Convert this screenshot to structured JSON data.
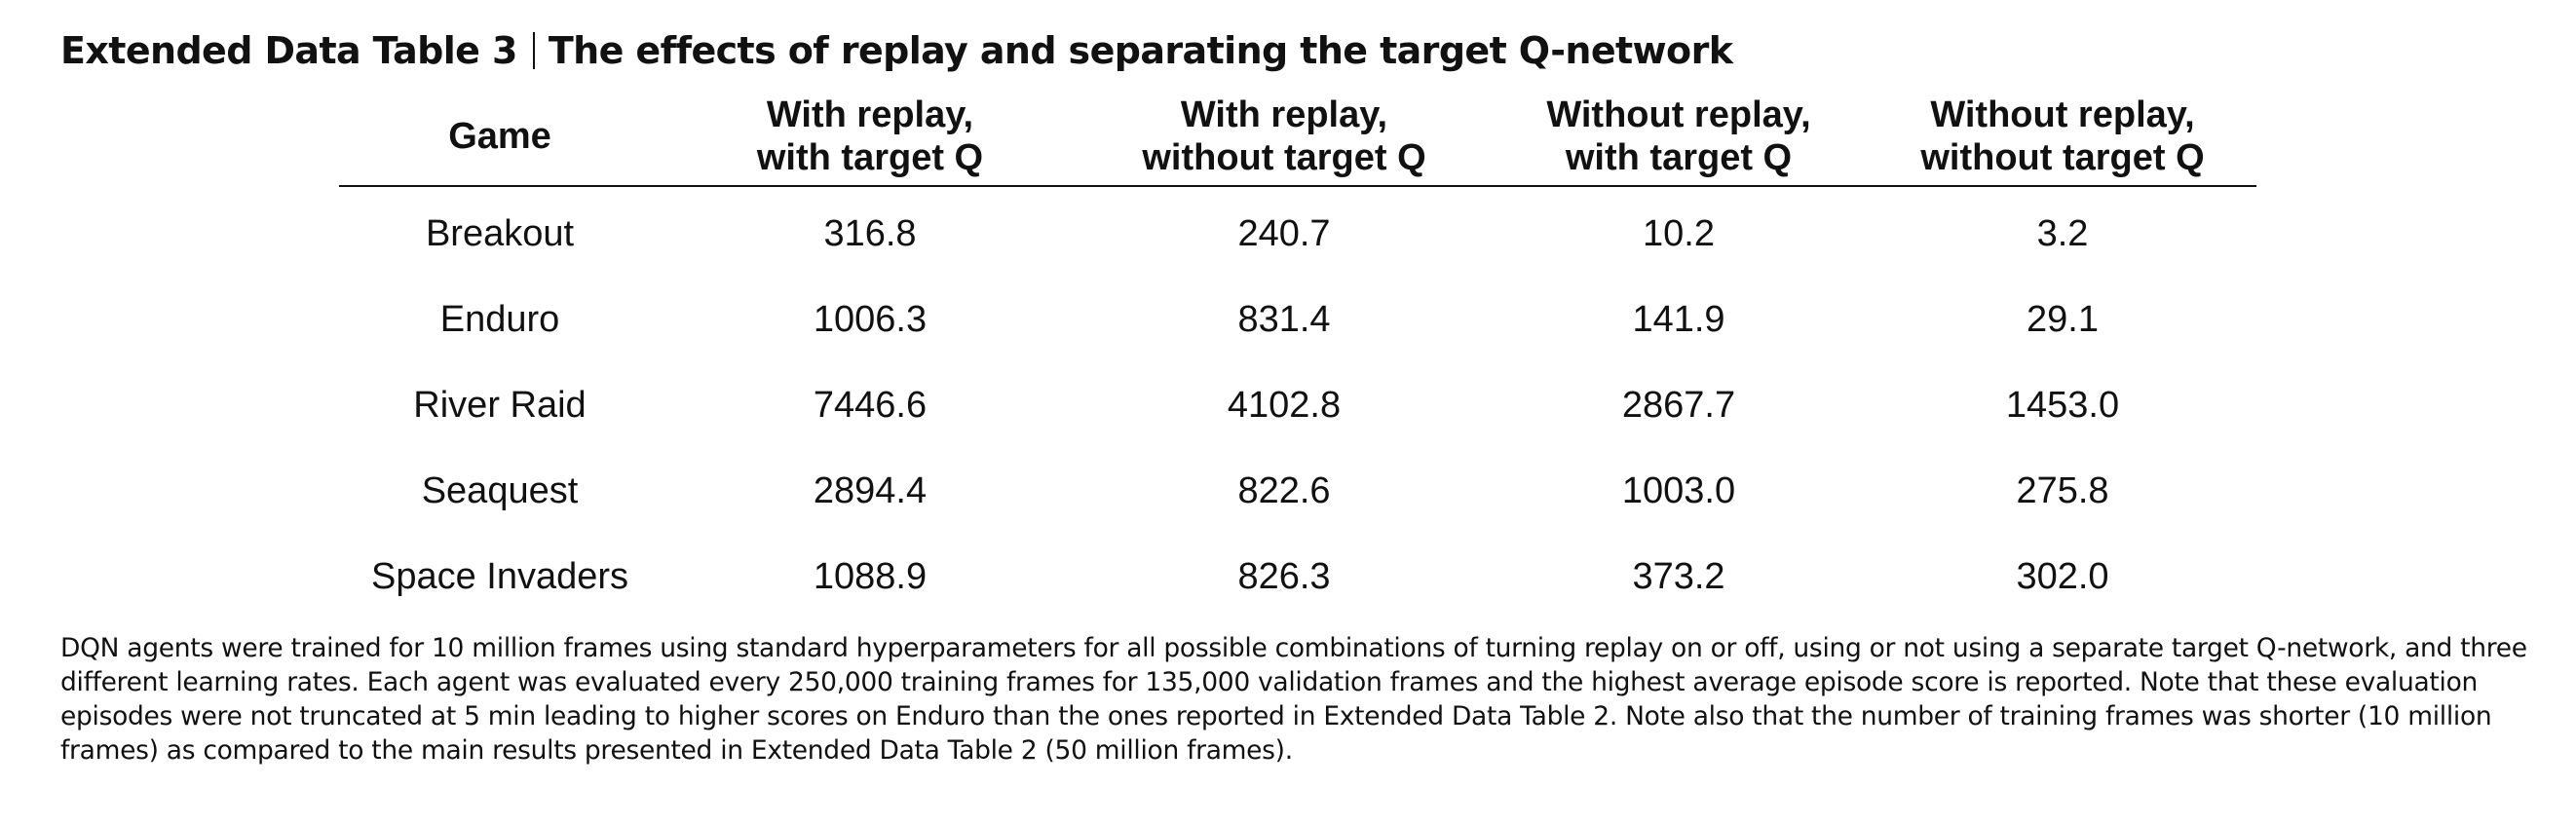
{
  "caption": {
    "label": "Extended Data Table 3",
    "title": "The effects of replay and separating the target Q-network"
  },
  "table": {
    "headers": [
      [
        "Game"
      ],
      [
        "With replay,",
        "with target Q"
      ],
      [
        "With replay,",
        "without target Q"
      ],
      [
        "Without replay,",
        "with target Q"
      ],
      [
        "Without replay,",
        "without target Q"
      ]
    ],
    "rows": [
      [
        "Breakout",
        "316.8",
        "240.7",
        "10.2",
        "3.2"
      ],
      [
        "Enduro",
        "1006.3",
        "831.4",
        "141.9",
        "29.1"
      ],
      [
        "River Raid",
        "7446.6",
        "4102.8",
        "2867.7",
        "1453.0"
      ],
      [
        "Seaquest",
        "2894.4",
        "822.6",
        "1003.0",
        "275.8"
      ],
      [
        "Space Invaders",
        "1088.9",
        "826.3",
        "373.2",
        "302.0"
      ]
    ]
  },
  "footnote": "DQN agents were trained for 10 million frames using standard hyperparameters for all possible combinations of turning replay on or off, using or not using a separate target Q-network, and three different learning rates. Each agent was evaluated every 250,000 training frames for 135,000 validation frames and the highest average episode score is reported. Note that these evaluation episodes were not truncated at 5 min leading to higher scores on Enduro than the ones reported in Extended Data Table 2. Note also that the number of training frames was shorter (10 million frames) as compared to the main results presented in Extended Data Table 2 (50 million frames)."
}
